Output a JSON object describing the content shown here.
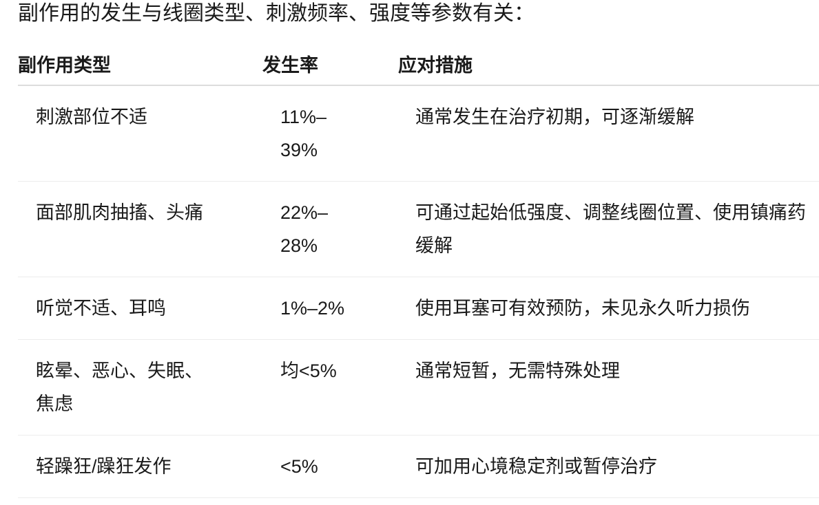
{
  "intro": "副作用的发生与线圈类型、刺激频率、强度等参数有关：",
  "table": {
    "headers": [
      "副作用类型",
      "发生率",
      "应对措施"
    ],
    "rows": [
      [
        "刺激部位不适",
        "11%–39%",
        "通常发生在治疗初期，可逐渐缓解"
      ],
      [
        "面部肌肉抽搐、头痛",
        "22%–28%",
        "可通过起始低强度、调整线圈位置、使用镇痛药缓解"
      ],
      [
        "听觉不适、耳鸣",
        "1%–2%",
        "使用耳塞可有效预防，未见永久听力损伤"
      ],
      [
        "眩晕、恶心、失眠、焦虑",
        "均<5%",
        "通常短暂，无需特殊处理"
      ],
      [
        "轻躁狂/躁狂发作",
        "<5%",
        "可加用心境稳定剂或暂停治疗"
      ]
    ]
  }
}
